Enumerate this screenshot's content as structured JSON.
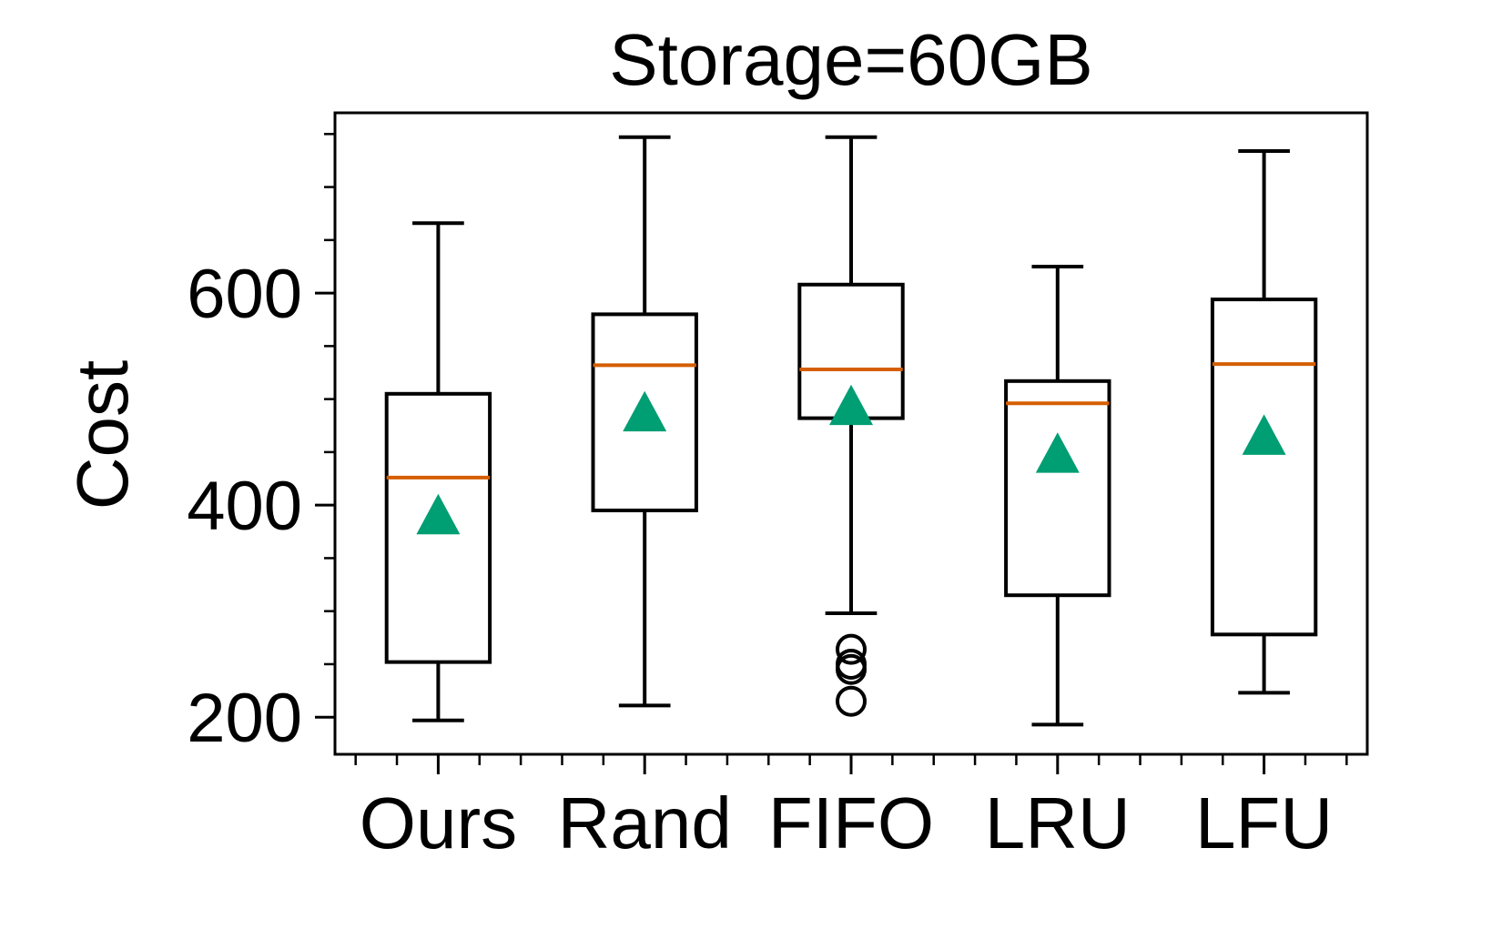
{
  "chart_data": {
    "type": "box",
    "title": "Storage=60GB",
    "xlabel": "",
    "ylabel": "Cost",
    "categories": [
      "Ours",
      "Rand",
      "FIFO",
      "LRU",
      "LFU"
    ],
    "ylim": [
      165,
      770
    ],
    "yticks": [
      200,
      400,
      600
    ],
    "y_minor_step": 50,
    "x_minor_step": 0.2,
    "grid": false,
    "boxes": [
      {
        "label": "Ours",
        "whislo": 197,
        "q1": 252,
        "med": 426,
        "q3": 505,
        "whishi": 666,
        "mean": 390,
        "fliers": []
      },
      {
        "label": "Rand",
        "whislo": 211,
        "q1": 395,
        "med": 532,
        "q3": 580,
        "whishi": 747,
        "mean": 487,
        "fliers": []
      },
      {
        "label": "FIFO",
        "whislo": 298,
        "q1": 482,
        "med": 528,
        "q3": 608,
        "whishi": 747,
        "mean": 493,
        "fliers": [
          264,
          250,
          245,
          215
        ]
      },
      {
        "label": "LRU",
        "whislo": 193,
        "q1": 315,
        "med": 496,
        "q3": 517,
        "whishi": 625,
        "mean": 448,
        "fliers": []
      },
      {
        "label": "LFU",
        "whislo": 223,
        "q1": 278,
        "med": 533,
        "q3": 594,
        "whishi": 734,
        "mean": 465,
        "fliers": []
      }
    ],
    "colors": {
      "box": "#000000",
      "median": "#d55e00",
      "mean": "#009e73",
      "flier": "#000000"
    }
  }
}
